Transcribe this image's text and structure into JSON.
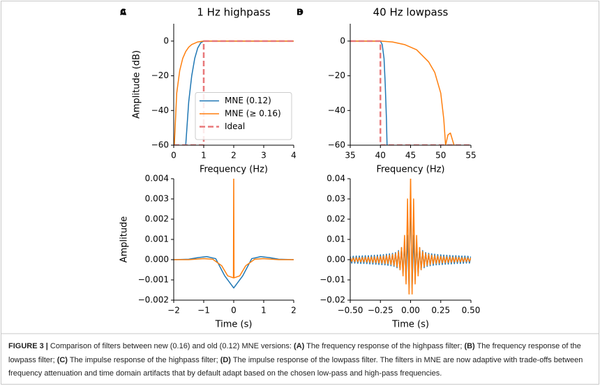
{
  "chart_data": [
    {
      "type": "line",
      "panel_label": "A",
      "title": "1 Hz highpass",
      "xlabel": "Frequency (Hz)",
      "ylabel": "Amplitude (dB)",
      "xlim": [
        0,
        4
      ],
      "ylim": [
        -60,
        10
      ],
      "xticks": [
        0,
        1,
        2,
        3,
        4
      ],
      "yticks": [
        {
          "value": -60,
          "label": "−60"
        },
        {
          "value": -40,
          "label": "−40"
        },
        {
          "value": -20,
          "label": "−20"
        },
        0
      ],
      "legend": "lower right",
      "series": [
        {
          "name": "MNE (0.12)",
          "color": "#1f77b4",
          "x": [
            0.4,
            0.5,
            0.6,
            0.7,
            0.8,
            0.9,
            1.0,
            4.0
          ],
          "values": [
            -60,
            -35,
            -20,
            -10,
            -4,
            -1,
            0,
            0
          ]
        },
        {
          "name": "MNE (≥ 0.16)",
          "color": "#ff7f0e",
          "x": [
            0.02,
            0.1,
            0.2,
            0.3,
            0.4,
            0.5,
            0.6,
            0.8,
            1.0,
            4.0
          ],
          "values": [
            -60,
            -30,
            -17,
            -10,
            -6,
            -3.5,
            -2,
            -0.5,
            0,
            0
          ]
        },
        {
          "name": "Ideal",
          "color": "#e8787a",
          "dashed": true,
          "x": [
            0,
            1,
            1,
            4
          ],
          "values": [
            -60,
            -60,
            0,
            0
          ]
        }
      ]
    },
    {
      "type": "line",
      "panel_label": "B",
      "title": "40 Hz lowpass",
      "xlabel": "Frequency (Hz)",
      "xlim": [
        35,
        55
      ],
      "ylim": [
        -60,
        10
      ],
      "xticks": [
        35,
        40,
        45,
        50,
        55
      ],
      "yticks": [
        {
          "value": -60,
          "label": "−60"
        },
        {
          "value": -40,
          "label": "−40"
        },
        {
          "value": -20,
          "label": "−20"
        },
        0
      ],
      "series": [
        {
          "color": "#1f77b4",
          "x": [
            35,
            40,
            40.3,
            40.6,
            40.8,
            41,
            41.1
          ],
          "values": [
            0,
            0,
            -2,
            -10,
            -25,
            -45,
            -60
          ]
        },
        {
          "color": "#ff7f0e",
          "x": [
            35,
            40,
            42,
            44,
            46,
            48,
            49,
            50,
            50.5,
            50.8,
            51.2,
            51.6,
            52.2
          ],
          "values": [
            0,
            0,
            -0.5,
            -2,
            -5,
            -12,
            -18,
            -30,
            -45,
            -60,
            -54,
            -53,
            -60
          ]
        },
        {
          "color": "#e8787a",
          "dashed": true,
          "x": [
            35,
            40,
            40,
            55
          ],
          "values": [
            0,
            0,
            -60,
            -60
          ]
        }
      ]
    },
    {
      "type": "line",
      "panel_label": "C",
      "xlabel": "Time (s)",
      "ylabel": "Amplitude",
      "xlim": [
        -2,
        2
      ],
      "ylim": [
        -0.002,
        0.004
      ],
      "xticks": [
        {
          "value": -2,
          "label": "−2"
        },
        {
          "value": -1,
          "label": "−1"
        },
        0,
        1,
        2
      ],
      "yticks": [
        {
          "value": -0.002,
          "label": "−0.002"
        },
        {
          "value": -0.001,
          "label": "−0.001"
        },
        {
          "value": 0,
          "label": "0.000"
        },
        0.001,
        0.002,
        0.003,
        0.004
      ],
      "series": [
        {
          "color": "#1f77b4",
          "x": [
            -2,
            -1.5,
            -1.2,
            -0.9,
            -0.6,
            -0.3,
            0,
            0.3,
            0.6,
            0.9,
            1.2,
            1.5,
            2
          ],
          "values": [
            0,
            2e-05,
            0.0001,
            0.00015,
            5e-05,
            -0.0008,
            -0.0014,
            -0.0008,
            5e-05,
            0.00015,
            0.0001,
            2e-05,
            0
          ]
        },
        {
          "color": "#ff7f0e",
          "x": [
            -2,
            -1.5,
            -1,
            -0.7,
            -0.4,
            -0.2,
            -0.01,
            0,
            0.01,
            0.2,
            0.4,
            0.7,
            1,
            1.5,
            2
          ],
          "values": [
            0,
            0,
            5e-05,
            2e-05,
            -0.0003,
            -0.0008,
            -0.0009,
            0.0045,
            -0.0009,
            -0.0008,
            -0.0003,
            2e-05,
            5e-05,
            0,
            0
          ]
        }
      ]
    },
    {
      "type": "line",
      "panel_label": "D",
      "xlabel": "Time (s)",
      "xlim": [
        -0.5,
        0.5
      ],
      "ylim": [
        -0.02,
        0.04
      ],
      "xticks": [
        {
          "value": -0.5,
          "label": "−0.50"
        },
        {
          "value": -0.25,
          "label": "−0.25"
        },
        {
          "value": 0,
          "label": "0.00"
        },
        {
          "value": 0.25,
          "label": "0.25"
        },
        {
          "value": 0.5,
          "label": "0.50"
        }
      ],
      "yticks": [
        {
          "value": -0.02,
          "label": "−0.02"
        },
        {
          "value": -0.01,
          "label": "−0.01"
        },
        {
          "value": 0,
          "label": "0.00"
        },
        0.01,
        0.02,
        0.03,
        0.04
      ],
      "x": [
        -0.5,
        -0.4875,
        -0.475,
        -0.4625,
        -0.45,
        -0.4375,
        -0.425,
        -0.4125,
        -0.4,
        -0.3875,
        -0.375,
        -0.3625,
        -0.35,
        -0.3375,
        -0.325,
        -0.3125,
        -0.3,
        -0.2875,
        -0.275,
        -0.2625,
        -0.25,
        -0.2375,
        -0.225,
        -0.2125,
        -0.2,
        -0.1875,
        -0.175,
        -0.1625,
        -0.15,
        -0.1375,
        -0.125,
        -0.1125,
        -0.1,
        -0.0875,
        -0.075,
        -0.0625,
        -0.05,
        -0.0375,
        -0.025,
        -0.0125,
        0,
        0.0125,
        0.025,
        0.0375,
        0.05,
        0.0625,
        0.075,
        0.0875,
        0.1,
        0.1125,
        0.125,
        0.1375,
        0.15,
        0.1625,
        0.175,
        0.1875,
        0.2,
        0.2125,
        0.225,
        0.2375,
        0.25,
        0.2625,
        0.275,
        0.2875,
        0.3,
        0.3125,
        0.325,
        0.3375,
        0.35,
        0.3625,
        0.375,
        0.3875,
        0.4,
        0.4125,
        0.425,
        0.4375,
        0.45,
        0.4625,
        0.475,
        0.4875,
        0.5
      ],
      "series": [
        {
          "color": "#1f77b4",
          "values": [
            0.0016,
            -0.0017,
            0.0017,
            -0.0017,
            0.0018,
            -0.0018,
            0.0018,
            -0.0019,
            0.0019,
            -0.0019,
            0.002,
            -0.002,
            0.002,
            -0.0021,
            0.0021,
            -0.0022,
            0.0022,
            -0.0023,
            0.0023,
            -0.0024,
            0.0024,
            -0.0025,
            0.0025,
            -0.0026,
            0.0027,
            -0.0028,
            0.0029,
            -0.003,
            0.0031,
            -0.0033,
            0.0035,
            -0.004,
            0.0045,
            -0.005,
            0.006,
            -0.007,
            0.008,
            -0.01,
            0.012,
            -0.014,
            0.034,
            -0.014,
            0.012,
            -0.01,
            0.008,
            -0.007,
            0.006,
            -0.005,
            0.0045,
            -0.004,
            0.0035,
            -0.0033,
            0.0031,
            -0.003,
            0.0029,
            -0.0028,
            0.0027,
            -0.0026,
            0.0025,
            -0.0025,
            0.0024,
            -0.0024,
            0.0023,
            -0.0023,
            0.0022,
            -0.0022,
            0.0021,
            -0.0021,
            0.002,
            -0.002,
            0.002,
            -0.0019,
            0.0019,
            -0.0019,
            0.0018,
            -0.0018,
            0.0018,
            -0.0017,
            0.0017,
            -0.0017,
            0.0016
          ]
        },
        {
          "color": "#ff7f0e",
          "values": [
            0.0009,
            -0.0009,
            0.0009,
            -0.001,
            0.001,
            -0.001,
            0.001,
            -0.0011,
            0.0011,
            -0.0011,
            0.0012,
            -0.0012,
            0.0012,
            -0.0013,
            0.0013,
            -0.0014,
            0.0014,
            -0.0015,
            0.0015,
            -0.0016,
            0.0016,
            -0.0017,
            0.0018,
            -0.0019,
            0.002,
            -0.002,
            0.0022,
            -0.0024,
            0.0026,
            -0.0028,
            0.003,
            -0.0035,
            0.004,
            -0.005,
            0.006,
            -0.008,
            0.012,
            -0.012,
            0.03,
            -0.017,
            0.042,
            -0.017,
            0.03,
            -0.012,
            0.012,
            -0.008,
            0.006,
            -0.005,
            0.004,
            -0.0035,
            0.003,
            -0.0028,
            0.0026,
            -0.0024,
            0.0022,
            -0.002,
            0.002,
            -0.0019,
            0.0018,
            -0.0017,
            0.0016,
            -0.0016,
            0.0015,
            -0.0015,
            0.0014,
            -0.0014,
            0.0013,
            -0.0013,
            0.0012,
            -0.0012,
            0.0012,
            -0.0011,
            0.0011,
            -0.0011,
            0.001,
            -0.001,
            0.001,
            -0.001,
            0.0009,
            -0.0009,
            0.0009
          ]
        }
      ]
    }
  ],
  "caption": {
    "runs": [
      {
        "text": "FIGURE 3 |",
        "bold": true
      },
      {
        "text": " Comparison of filters between new (0.16) and old (0.12) MNE versions: "
      },
      {
        "text": "(A)",
        "bold": true
      },
      {
        "text": " The frequency response of the highpass filter; "
      },
      {
        "text": "(B)",
        "bold": true
      },
      {
        "text": " The frequency response of the lowpass filter; "
      },
      {
        "text": "(C)",
        "bold": true
      },
      {
        "text": " The impulse response of the highpass filter; "
      },
      {
        "text": "(D)",
        "bold": true
      },
      {
        "text": " The impulse response of the lowpass filter. The filters in MNE are now adaptive with trade-offs between frequency attenuation and time domain artifacts that by default adapt based on the chosen low-pass and high-pass frequencies."
      }
    ]
  }
}
